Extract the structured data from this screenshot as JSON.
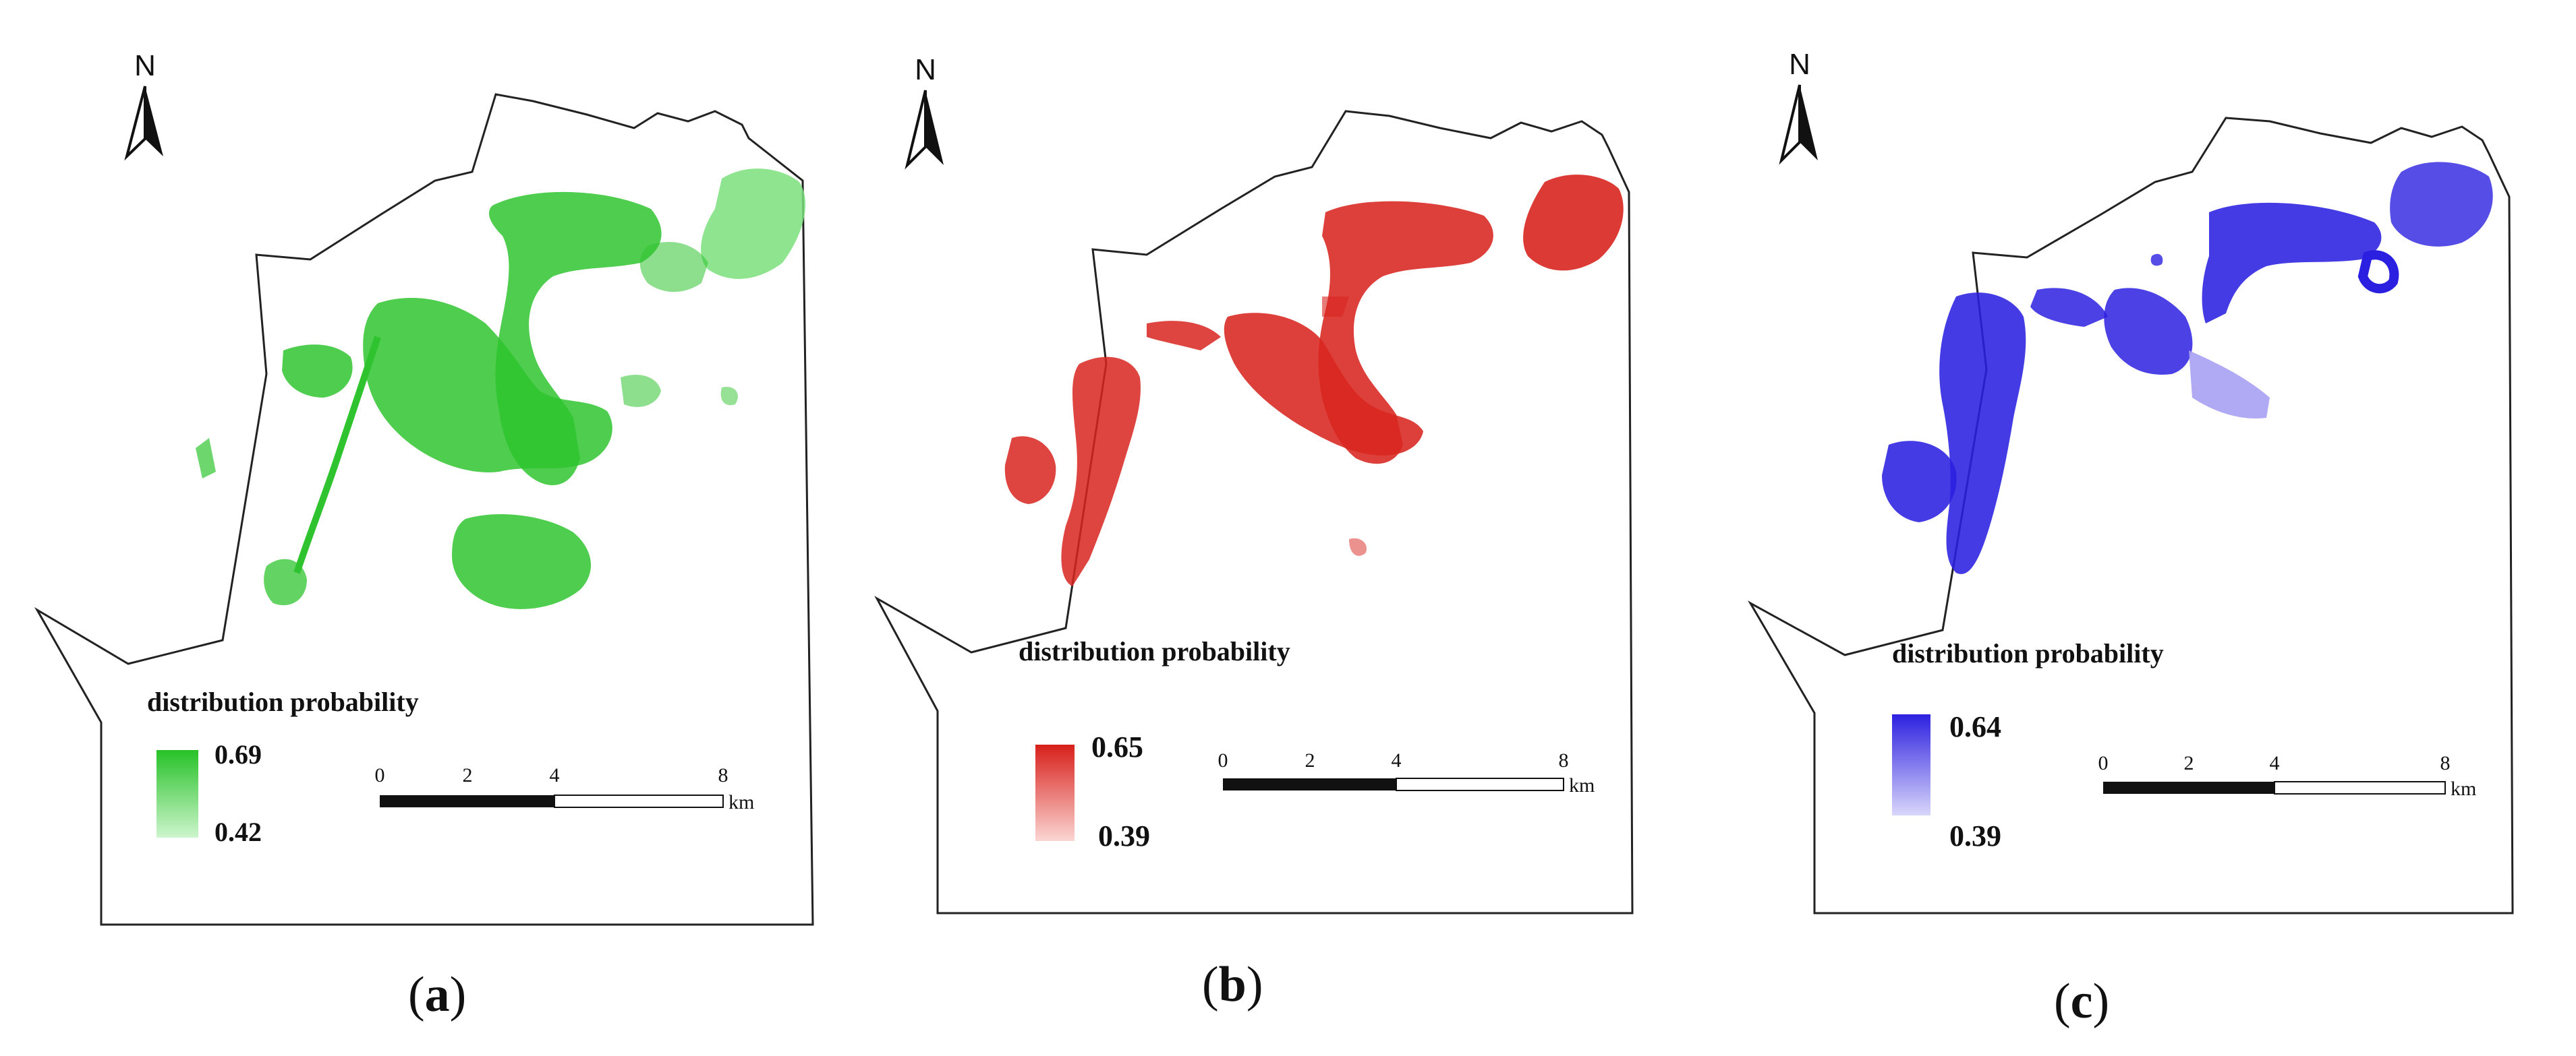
{
  "panels": [
    {
      "id": "a",
      "caption_letter": "a",
      "north_label": "N",
      "legend_title": "distribution probability",
      "legend_max": "0.69",
      "legend_min": "0.42",
      "colors": {
        "high": "#27c227",
        "low": "#cdf5cd"
      },
      "scale_ticks": [
        "0",
        "2",
        "4",
        "8"
      ],
      "scale_unit": "km"
    },
    {
      "id": "b",
      "caption_letter": "b",
      "north_label": "N",
      "legend_title": "distribution probability",
      "legend_max": "0.65",
      "legend_min": "0.39",
      "colors": {
        "high": "#d81f1a",
        "low": "#fbd6d3"
      },
      "scale_ticks": [
        "0",
        "2",
        "4",
        "8"
      ],
      "scale_unit": "km"
    },
    {
      "id": "c",
      "caption_letter": "c",
      "north_label": "N",
      "legend_title": "distribution probability",
      "legend_max": "0.64",
      "legend_min": "0.39",
      "colors": {
        "high": "#2d21e0",
        "low": "#d9d6fb"
      },
      "scale_ticks": [
        "0",
        "2",
        "4",
        "8"
      ],
      "scale_unit": "km"
    }
  ]
}
